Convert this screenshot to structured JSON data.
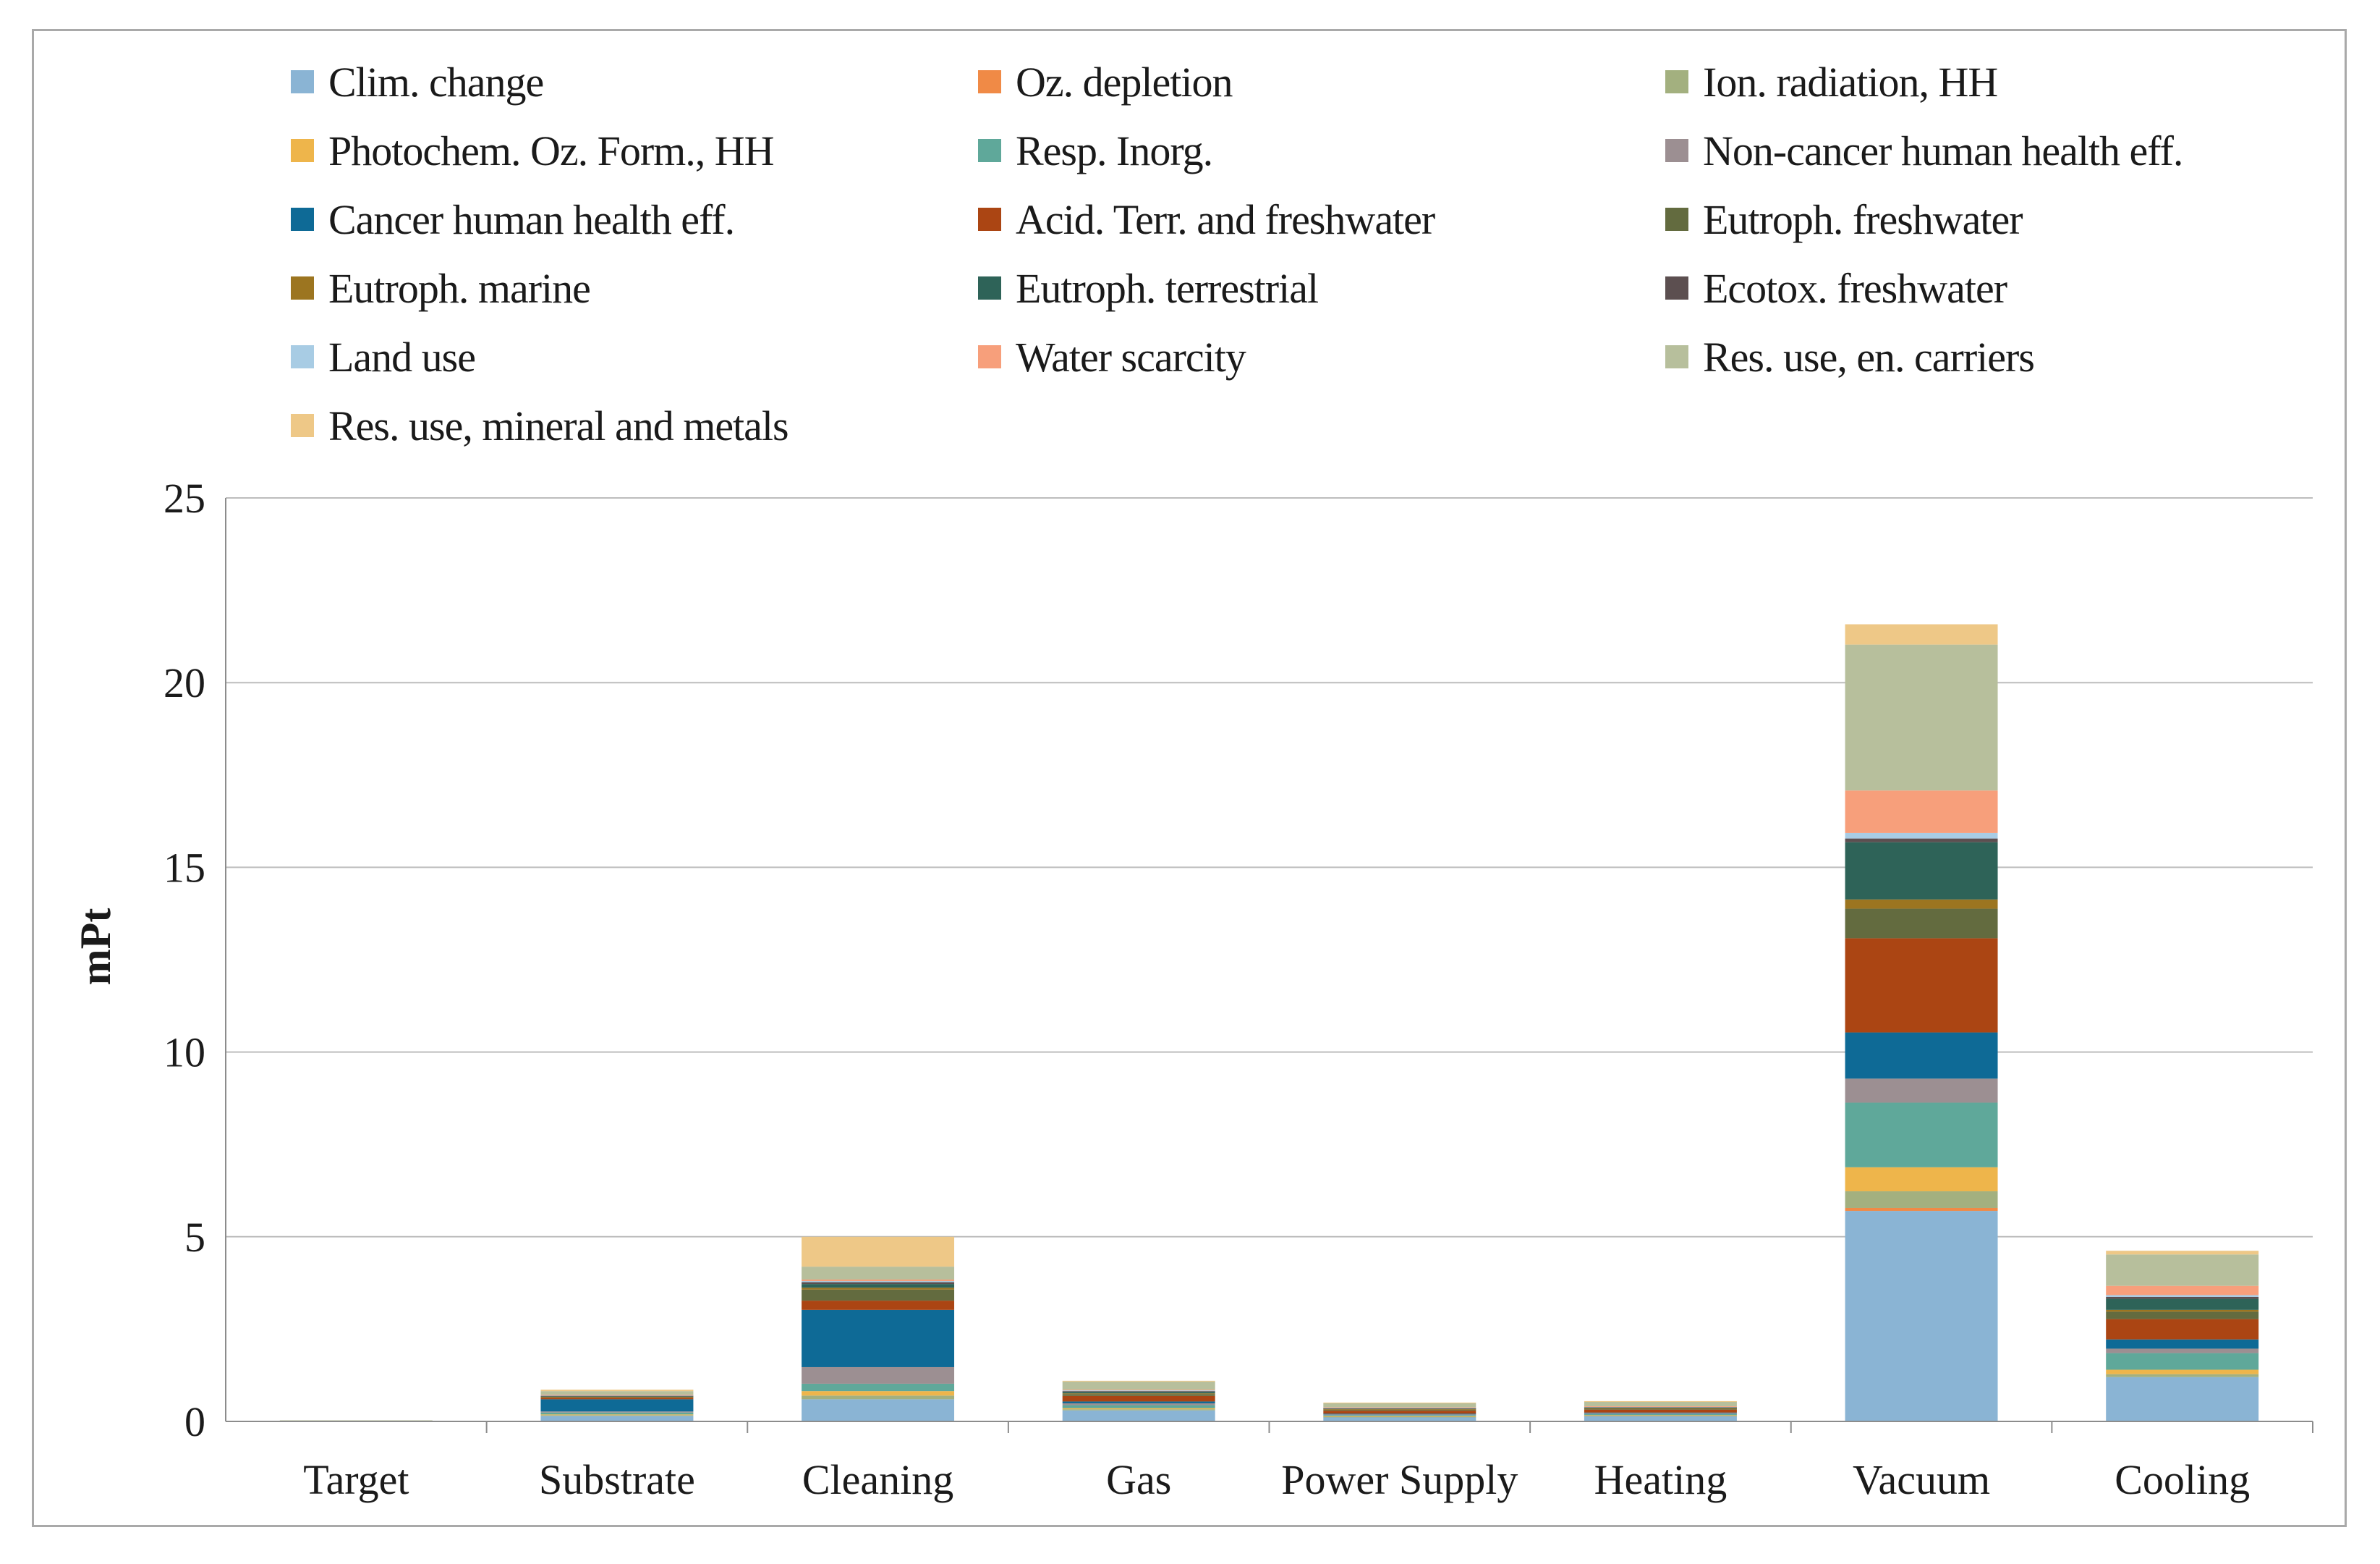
{
  "chart_data": {
    "type": "bar",
    "stacked": true,
    "title": "",
    "xlabel": "",
    "ylabel": "mPt",
    "ylim": [
      0,
      25
    ],
    "yticks": [
      0,
      5,
      10,
      15,
      20,
      25
    ],
    "grid": true,
    "legend_position": "top",
    "categories": [
      "Target",
      "Substrate",
      "Cleaning",
      "Gas",
      "Power Supply",
      "Heating",
      "Vacuum",
      "Cooling"
    ],
    "series": [
      {
        "name": "Clim. change",
        "color": "#8ab4d4",
        "values": [
          0.02,
          0.15,
          0.6,
          0.3,
          0.12,
          0.15,
          5.7,
          1.2
        ]
      },
      {
        "name": "Oz. depletion",
        "color": "#f08a46",
        "values": [
          0,
          0,
          0,
          0,
          0,
          0,
          0.08,
          0
        ]
      },
      {
        "name": "Ion. radiation, HH",
        "color": "#a3b07f",
        "values": [
          0,
          0.02,
          0.1,
          0.03,
          0.01,
          0.01,
          0.45,
          0.08
        ]
      },
      {
        "name": "Photochem. Oz. Form., HH",
        "color": "#eeb54b",
        "values": [
          0,
          0.02,
          0.12,
          0.03,
          0.01,
          0.01,
          0.65,
          0.12
        ]
      },
      {
        "name": "Resp. Inorg.",
        "color": "#5fa89a",
        "values": [
          0,
          0.05,
          0.2,
          0.08,
          0.03,
          0.03,
          1.75,
          0.45
        ]
      },
      {
        "name": "Non-cancer human health eff.",
        "color": "#9c8f92",
        "values": [
          0,
          0.03,
          0.45,
          0.05,
          0.02,
          0.02,
          0.65,
          0.12
        ]
      },
      {
        "name": "Cancer human health eff.",
        "color": "#0e6a96",
        "values": [
          0,
          0.33,
          1.55,
          0.05,
          0.02,
          0.02,
          1.25,
          0.25
        ]
      },
      {
        "name": "Acid. Terr. and freshwater",
        "color": "#ab4513",
        "values": [
          0,
          0.04,
          0.25,
          0.15,
          0.08,
          0.08,
          2.55,
          0.55
        ]
      },
      {
        "name": "Eutroph. freshwater",
        "color": "#636b3f",
        "values": [
          0,
          0.02,
          0.3,
          0.05,
          0.03,
          0.03,
          0.8,
          0.2
        ]
      },
      {
        "name": "Eutroph. marine",
        "color": "#9c7520",
        "values": [
          0,
          0.01,
          0.05,
          0.02,
          0.01,
          0.01,
          0.25,
          0.05
        ]
      },
      {
        "name": "Eutroph. terrestrial",
        "color": "#2e6358",
        "values": [
          0,
          0.02,
          0.1,
          0.04,
          0.02,
          0.02,
          1.55,
          0.3
        ]
      },
      {
        "name": "Ecotox. freshwater",
        "color": "#5c4f50",
        "values": [
          0,
          0.01,
          0.05,
          0.02,
          0.01,
          0.01,
          0.1,
          0.05
        ]
      },
      {
        "name": "Land use",
        "color": "#a8cce4",
        "values": [
          0,
          0.01,
          0.03,
          0.02,
          0.01,
          0.01,
          0.15,
          0.05
        ]
      },
      {
        "name": "Water scarcity",
        "color": "#f79f7b",
        "values": [
          0,
          0.01,
          0.04,
          0.02,
          0.01,
          0.01,
          1.15,
          0.25
        ]
      },
      {
        "name": "Res. use, en. carriers",
        "color": "#b7bf9c",
        "values": [
          0.01,
          0.1,
          0.35,
          0.22,
          0.11,
          0.12,
          3.95,
          0.85
        ]
      },
      {
        "name": "Res. use, mineral and metals",
        "color": "#eec887",
        "values": [
          0,
          0.04,
          0.81,
          0.02,
          0.02,
          0.02,
          0.55,
          0.1
        ]
      }
    ]
  }
}
